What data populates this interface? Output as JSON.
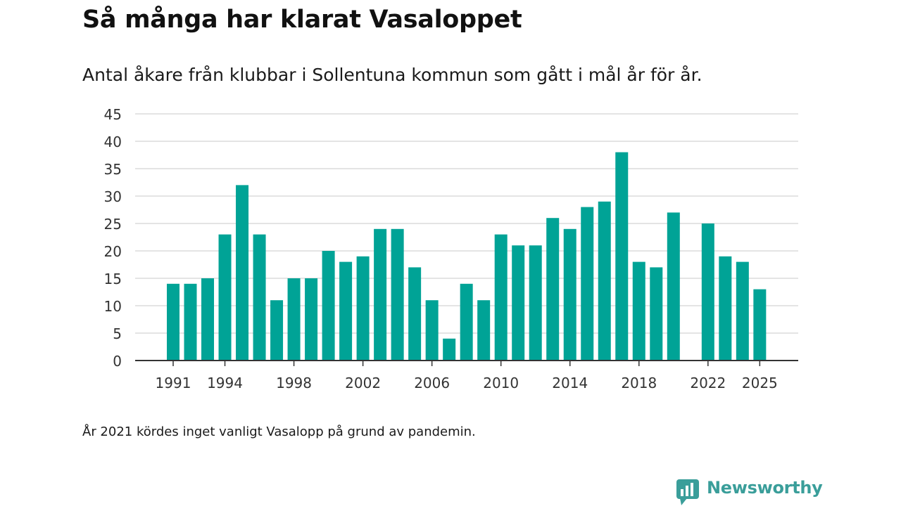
{
  "title": "Så många har klarat Vasaloppet",
  "subtitle": "Antal åkare från klubbar i Sollentuna kommun som gått i mål år för år.",
  "footnote": "År 2021 kördes inget vanligt Vasalopp på grund av pandemin.",
  "brand": {
    "name": "Newsworthy",
    "color": "#3a9e9a"
  },
  "chart_data": {
    "type": "bar",
    "title": "Så många har klarat Vasaloppet",
    "xlabel": "",
    "ylabel": "",
    "ylim": [
      0,
      45
    ],
    "yticks": [
      0,
      5,
      10,
      15,
      20,
      25,
      30,
      35,
      40,
      45
    ],
    "xticks": [
      1991,
      1994,
      1998,
      2002,
      2006,
      2010,
      2014,
      2018,
      2022,
      2025
    ],
    "xlim": [
      1991,
      2025
    ],
    "grid": true,
    "bar_color": "#00a396",
    "categories": [
      1991,
      1992,
      1993,
      1994,
      1995,
      1996,
      1997,
      1998,
      1999,
      2000,
      2001,
      2002,
      2003,
      2004,
      2005,
      2006,
      2007,
      2008,
      2009,
      2010,
      2011,
      2012,
      2013,
      2014,
      2015,
      2016,
      2017,
      2018,
      2019,
      2020,
      2021,
      2022,
      2023,
      2024,
      2025
    ],
    "values": [
      14,
      14,
      15,
      23,
      32,
      23,
      11,
      15,
      15,
      20,
      18,
      19,
      24,
      24,
      17,
      11,
      4,
      14,
      11,
      23,
      21,
      21,
      26,
      24,
      28,
      29,
      38,
      18,
      17,
      27,
      null,
      25,
      19,
      18,
      13
    ]
  }
}
